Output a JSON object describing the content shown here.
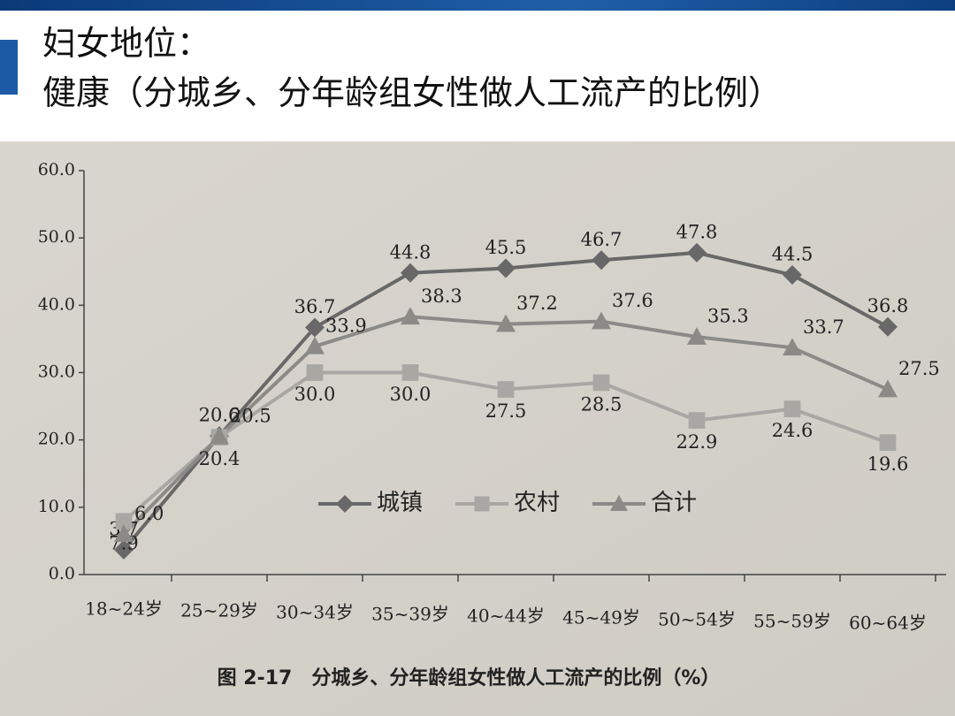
{
  "chart_data": {
    "type": "line",
    "title": "妇女地位：",
    "subtitle": "健康（分城乡、分年龄组女性做人工流产的比例）",
    "caption": "图 2-17　分城乡、分年龄组女性做人工流产的比例（%）",
    "categories": [
      "18~24岁",
      "25~29岁",
      "30~34岁",
      "35~39岁",
      "40~44岁",
      "45~49岁",
      "50~54岁",
      "55~59岁",
      "60~64岁"
    ],
    "series": [
      {
        "name": "城镇",
        "color": "#686868",
        "marker": "diamond",
        "values": [
          3.7,
          20.6,
          36.7,
          44.8,
          45.5,
          46.7,
          47.8,
          44.5,
          36.8
        ],
        "value_labels": [
          "3.7",
          "20.6",
          "36.7",
          "44.8",
          "45.5",
          "46.7",
          "47.8",
          "44.5",
          "36.8"
        ]
      },
      {
        "name": "农村",
        "color": "#a9a7a3",
        "marker": "square",
        "values": [
          7.9,
          20.4,
          30,
          30,
          27.5,
          28.5,
          22.9,
          24.6,
          19.6
        ],
        "value_labels": [
          "7.9",
          "20.4",
          "30.0",
          "30.0",
          "27.5",
          "28.5",
          "22.9",
          "24.6",
          "19.6"
        ]
      },
      {
        "name": "合计",
        "color": "#8b8a87",
        "marker": "triangle",
        "values": [
          6,
          20.5,
          33.9,
          38.3,
          37.2,
          37.6,
          35.3,
          33.7,
          27.5
        ],
        "value_labels": [
          "6.0",
          "20.5",
          "33.9",
          "38.3",
          "37.2",
          "37.6",
          "35.3",
          "33.7",
          "27.5"
        ]
      }
    ],
    "ylim": [
      0,
      60
    ],
    "yticks": [
      {
        "value": 0,
        "label": "0.0"
      },
      {
        "value": 10,
        "label": "10.0"
      },
      {
        "value": 20,
        "label": "20.0"
      },
      {
        "value": 30,
        "label": "30.0"
      },
      {
        "value": 40,
        "label": "40.0"
      },
      {
        "value": 50,
        "label": "50.0"
      },
      {
        "value": 60,
        "label": "60.0"
      }
    ]
  }
}
